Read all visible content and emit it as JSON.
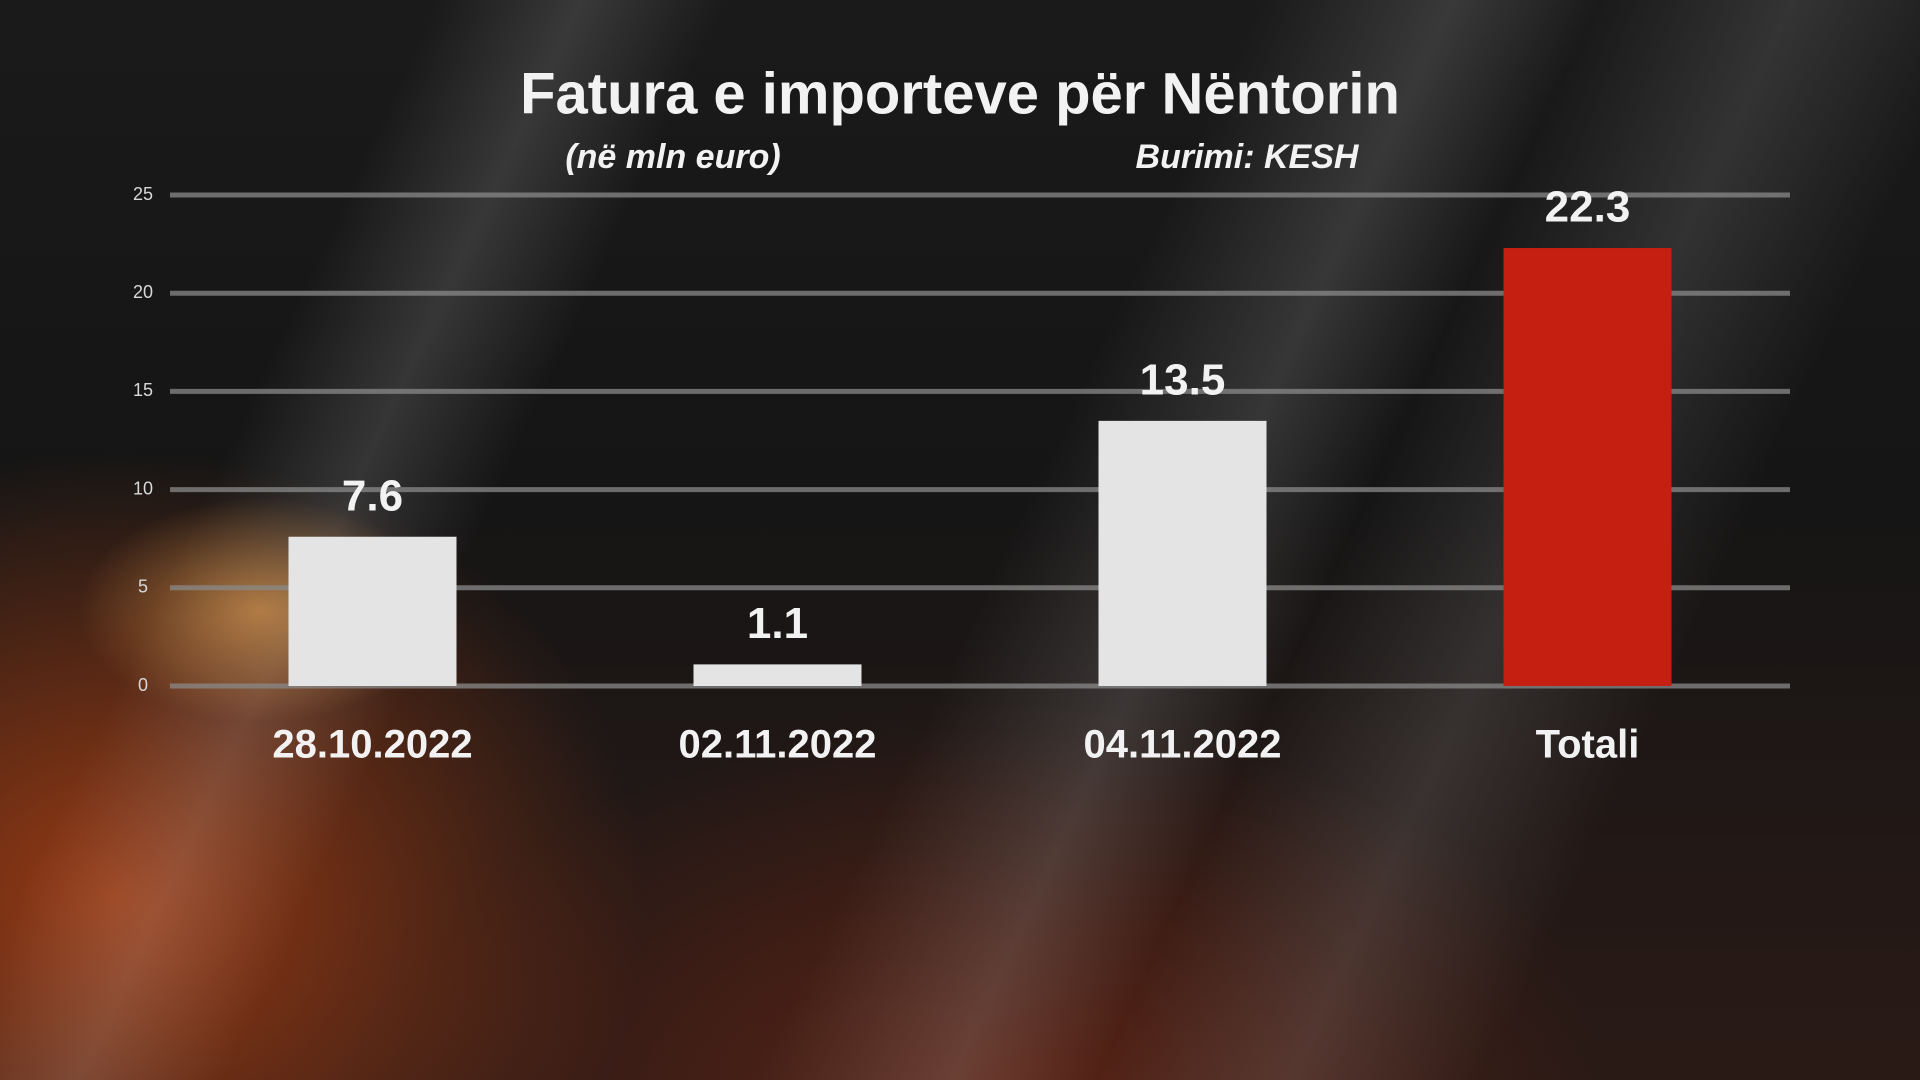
{
  "chart_data": {
    "type": "bar",
    "title": "Fatura e importeve për Nëntorin",
    "subtitle": "(në mln euro)",
    "source": "Burimi: KESH",
    "categories": [
      "28.10.2022",
      "02.11.2022",
      "04.11.2022",
      "Totali"
    ],
    "values": [
      7.6,
      1.1,
      13.5,
      22.3
    ],
    "colors": [
      "#e4e4e4",
      "#e4e4e4",
      "#e4e4e4",
      "#c41f10"
    ],
    "ylim": [
      0,
      25
    ],
    "yticks": [
      0,
      5,
      10,
      15,
      20,
      25
    ],
    "grid": true
  }
}
